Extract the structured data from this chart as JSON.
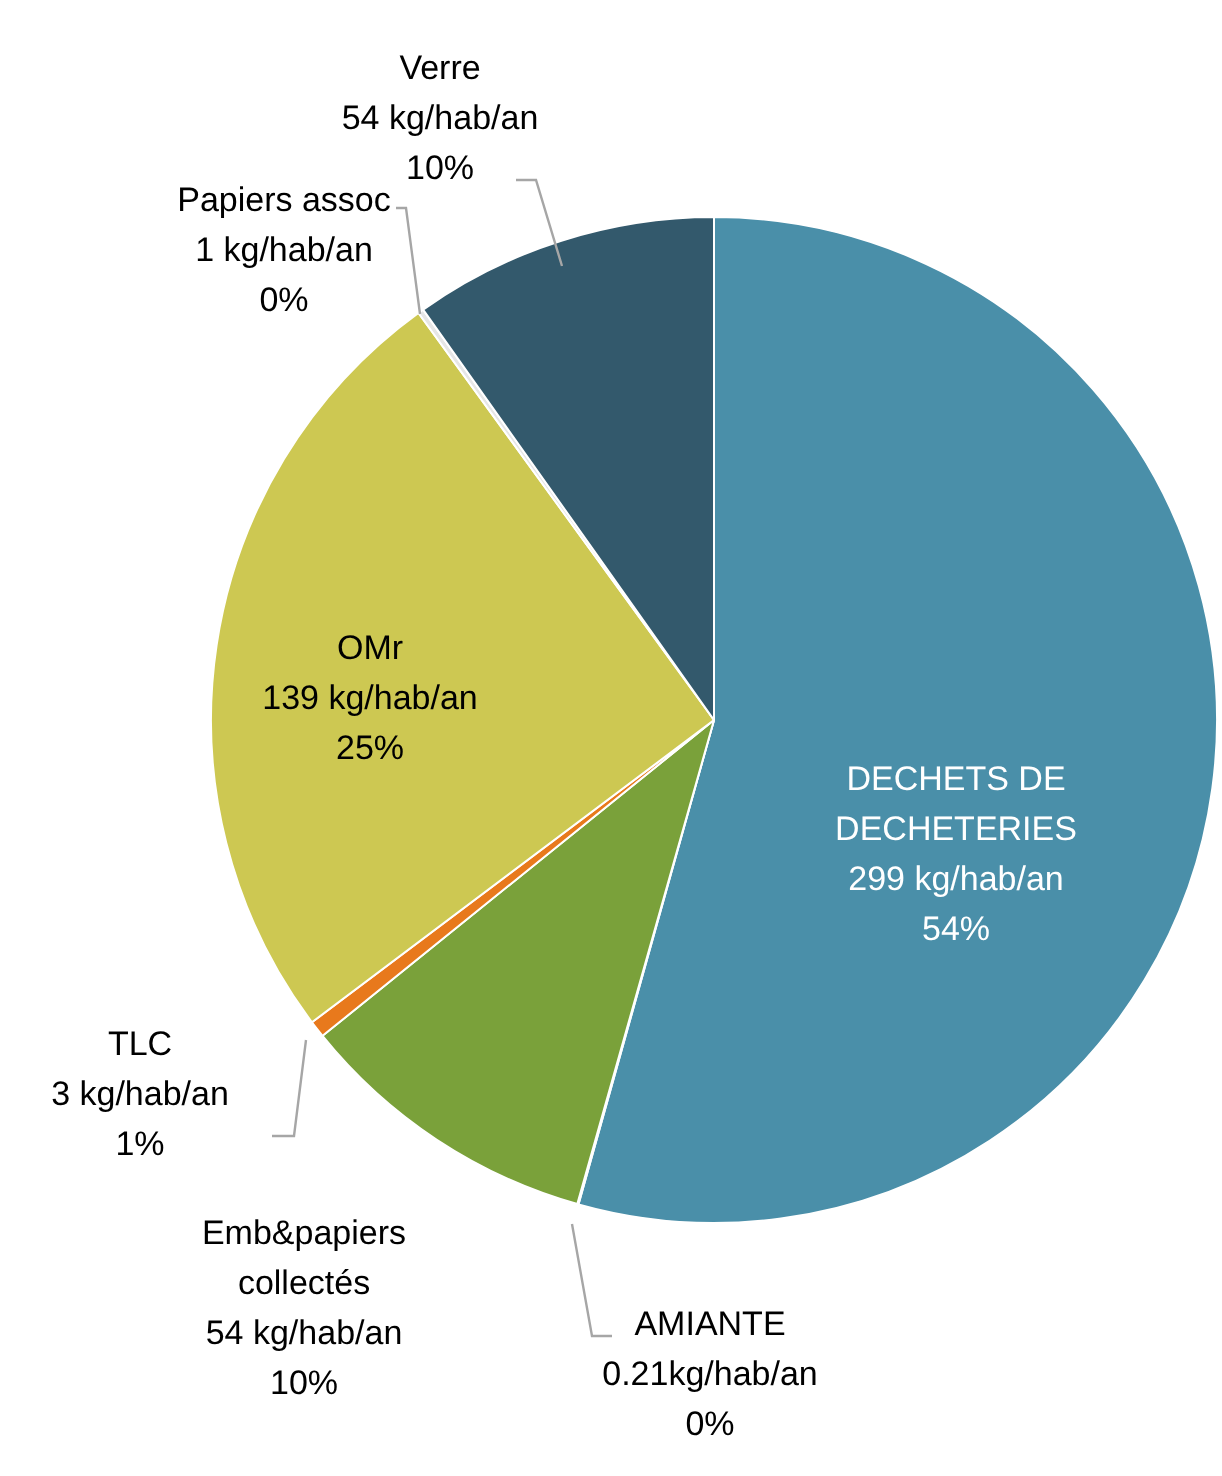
{
  "chart_data": {
    "type": "pie",
    "categories": [
      "DECHETS DE DECHETERIES",
      "AMIANTE",
      "Emb&papiers collectés",
      "TLC",
      "OMr",
      "Papiers assoc",
      "Verre"
    ],
    "values": [
      299,
      0.21,
      54,
      3,
      139,
      1,
      54
    ],
    "colors": [
      "#4a8fa9",
      "#d9d9d9",
      "#7aa13a",
      "#e8791c",
      "#cdc852",
      "#e6e6e6",
      "#33596c"
    ],
    "value_labels": [
      "299 kg/hab/an\n54%",
      "0.21kg/hab/an\n0%",
      "54 kg/hab/an\n10%",
      "3 kg/hab/an\n1%",
      "139 kg/hab/an\n25%",
      "1 kg/hab/an\n0%",
      "54 kg/hab/an\n10%"
    ],
    "legend": false
  }
}
